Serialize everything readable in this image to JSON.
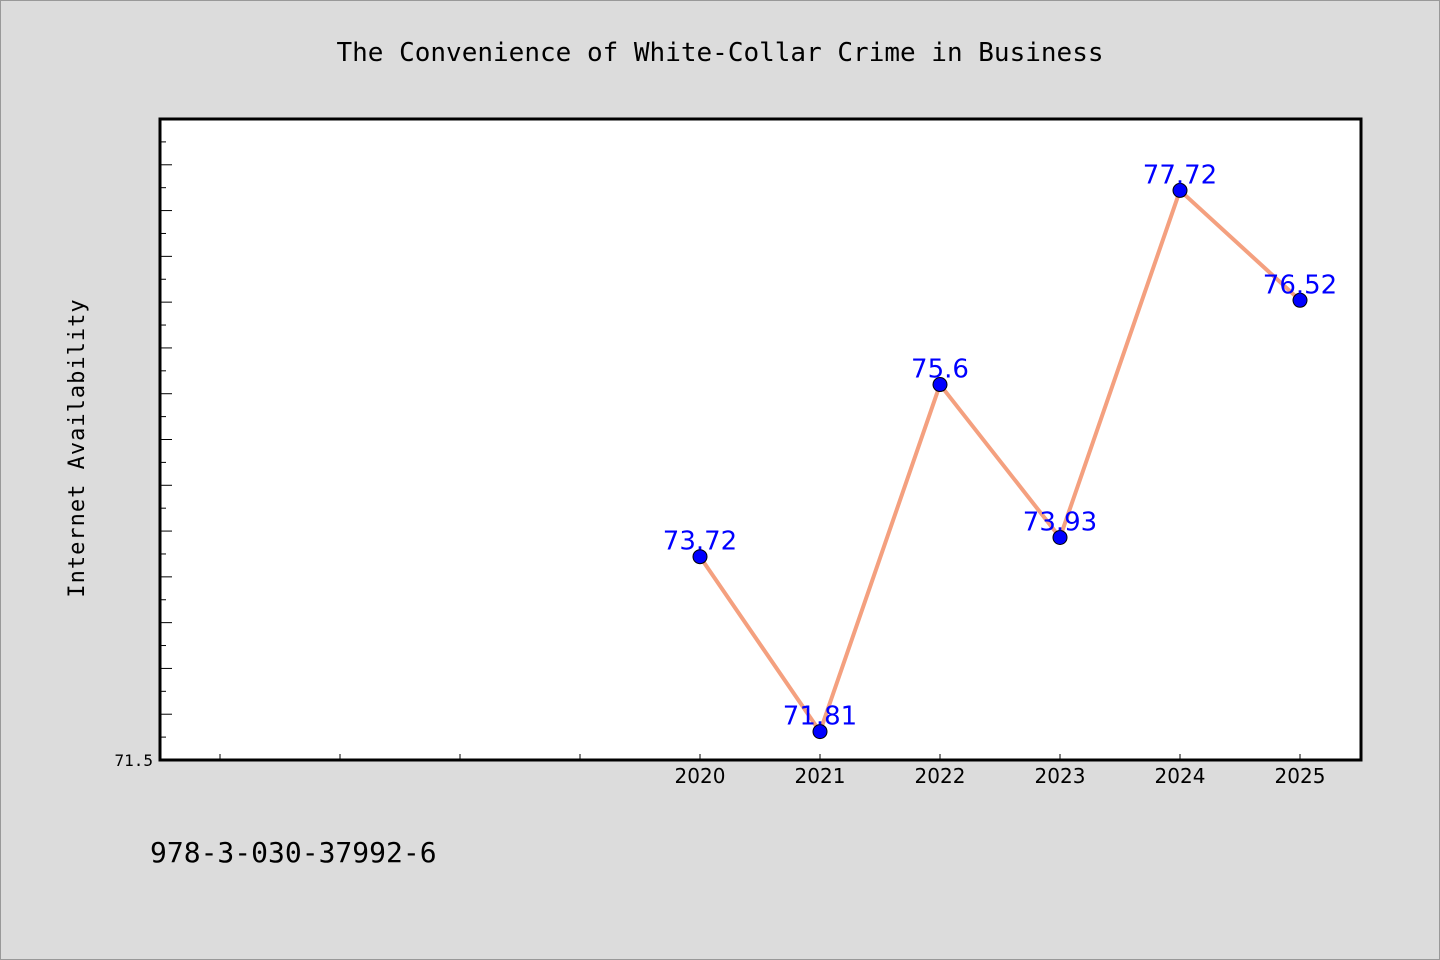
{
  "chart_data": {
    "type": "line",
    "title": "The Convenience of White-Collar Crime in Business",
    "xlabel": "",
    "ylabel": "Internet Availability",
    "categories": [
      "2020",
      "2021",
      "2022",
      "2023",
      "2024",
      "2025"
    ],
    "series": [
      {
        "values": [
          73.72,
          71.81,
          75.6,
          73.93,
          77.72,
          76.52
        ],
        "value_labels": [
          "73.72",
          "71.81",
          "75.6",
          "73.93",
          "77.72",
          "76.52"
        ]
      }
    ],
    "ylim": [
      71.5,
      78.5
    ],
    "y_tick_labels": [
      "71.5"
    ],
    "grid": false,
    "line_color": "#f4a07f",
    "marker_color": "#0000ff",
    "label_color": "#0000ff"
  },
  "footer": {
    "isbn": "978-3-030-37992-6"
  }
}
